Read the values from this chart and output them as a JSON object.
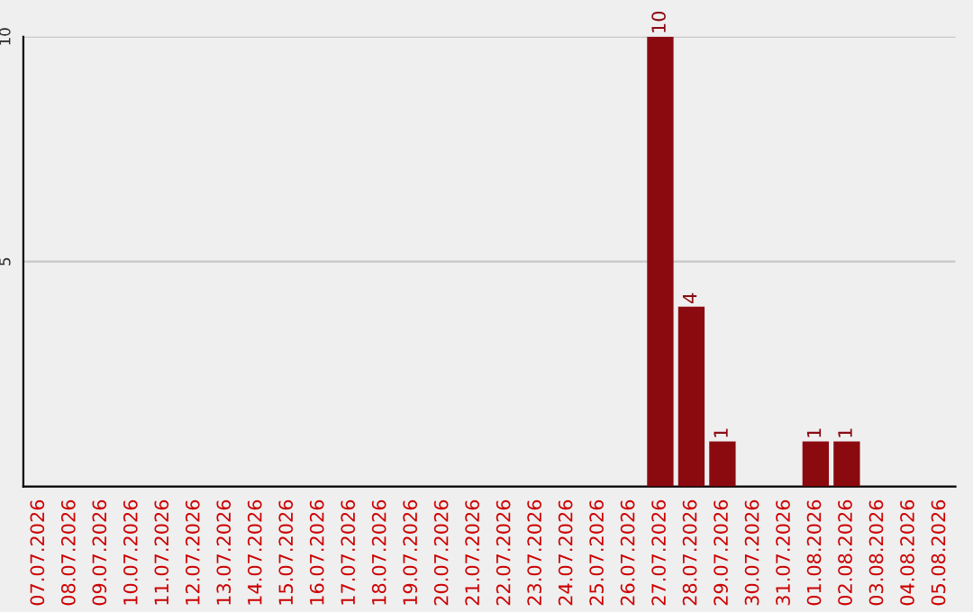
{
  "chart_data": {
    "type": "bar",
    "categories": [
      "07.07.2026",
      "08.07.2026",
      "09.07.2026",
      "10.07.2026",
      "11.07.2026",
      "12.07.2026",
      "13.07.2026",
      "14.07.2026",
      "15.07.2026",
      "16.07.2026",
      "17.07.2026",
      "18.07.2026",
      "19.07.2026",
      "20.07.2026",
      "21.07.2026",
      "22.07.2026",
      "23.07.2026",
      "24.07.2026",
      "25.07.2026",
      "26.07.2026",
      "27.07.2026",
      "28.07.2026",
      "29.07.2026",
      "30.07.2026",
      "31.07.2026",
      "01.08.2026",
      "02.08.2026",
      "03.08.2026",
      "04.08.2026",
      "05.08.2026"
    ],
    "values": [
      0,
      0,
      0,
      0,
      0,
      0,
      0,
      0,
      0,
      0,
      0,
      0,
      0,
      0,
      0,
      0,
      0,
      0,
      0,
      0,
      10,
      4,
      1,
      0,
      0,
      1,
      1,
      0,
      0,
      0
    ],
    "value_labels": [
      null,
      null,
      null,
      null,
      null,
      null,
      null,
      null,
      null,
      null,
      null,
      null,
      null,
      null,
      null,
      null,
      null,
      null,
      null,
      null,
      "10",
      "4",
      "1",
      null,
      null,
      "1",
      "1",
      null,
      null,
      null
    ],
    "color": "#8b0a10",
    "ylim": [
      0,
      10
    ],
    "yticks": [
      5,
      10
    ],
    "grid": "y",
    "legend": false
  }
}
